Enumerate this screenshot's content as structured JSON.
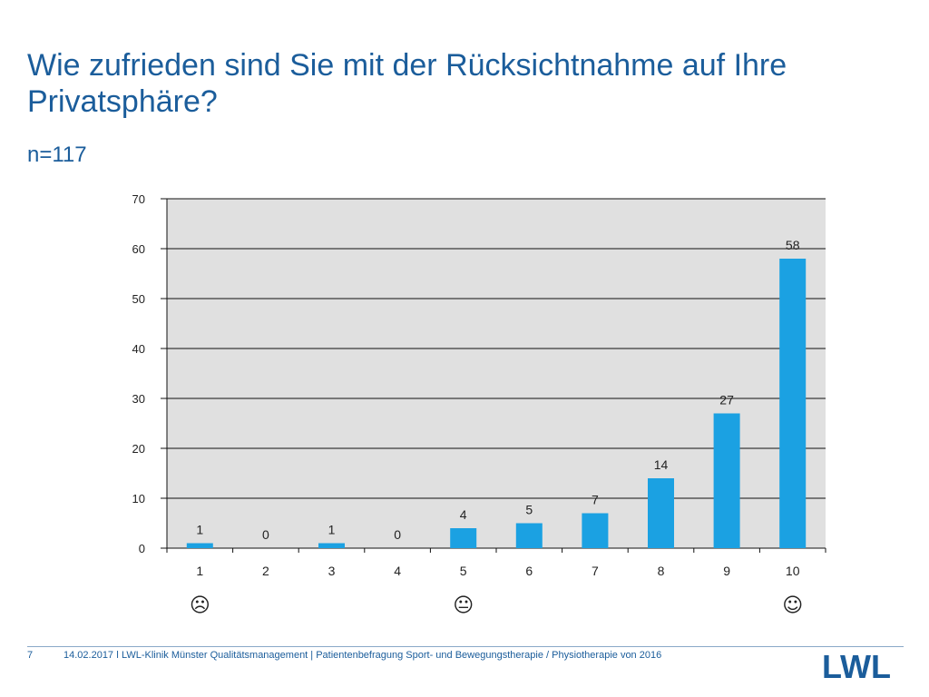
{
  "header": {
    "title": "Wie zufrieden sind Sie mit der Rücksichtnahme auf Ihre Privatsphäre?",
    "subtitle": "n=117"
  },
  "chart_data": {
    "type": "bar",
    "title": "Wie zufrieden sind Sie mit der Rücksichtnahme auf Ihre Privatsphäre?",
    "categories": [
      "1",
      "2",
      "3",
      "4",
      "5",
      "6",
      "7",
      "8",
      "9",
      "10"
    ],
    "values": [
      1,
      0,
      1,
      0,
      4,
      5,
      7,
      14,
      27,
      58
    ],
    "data_labels": [
      "1",
      "0",
      "1",
      "0",
      "4",
      "5",
      "7",
      "14",
      "27",
      "58"
    ],
    "ylim": [
      0,
      70
    ],
    "yticks": [
      0,
      10,
      20,
      30,
      40,
      50,
      60,
      70
    ],
    "xlabel": "",
    "ylabel": "",
    "grid": true,
    "bar_color": "#1ba1e2",
    "plot_background": "#e0e0e0",
    "face_icons": [
      {
        "category_index": 0,
        "icon": "frown-face-icon",
        "glyph": "☹"
      },
      {
        "category_index": 4,
        "icon": "neutral-face-icon",
        "glyph": "😐"
      },
      {
        "category_index": 9,
        "icon": "smile-face-icon",
        "glyph": "☺"
      }
    ]
  },
  "footer": {
    "page": "7",
    "text": "14.02.2017 ǀ LWL-Klinik Münster Qualitätsmanagement | Patientenbefragung Sport- und Bewegungstherapie / Physiotherapie von 2016",
    "logo_text": "LWL"
  }
}
